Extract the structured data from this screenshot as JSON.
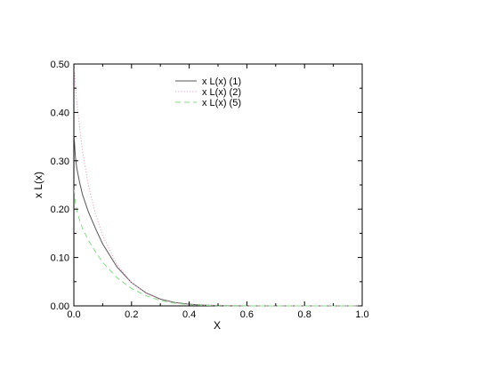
{
  "chart_data": {
    "type": "line",
    "xlabel": "X",
    "ylabel": "x L(x)",
    "xlim": [
      0.0,
      1.0
    ],
    "ylim": [
      0.0,
      0.5
    ],
    "xticks": [
      "0.0",
      "0.2",
      "0.4",
      "0.6",
      "0.8",
      "1.0"
    ],
    "yticks": [
      "0.00",
      "0.10",
      "0.20",
      "0.30",
      "0.40",
      "0.50"
    ],
    "grid": false,
    "legend_position": "top-center",
    "x": [
      0.001,
      0.005,
      0.01,
      0.02,
      0.03,
      0.05,
      0.075,
      0.1,
      0.15,
      0.2,
      0.25,
      0.3,
      0.35,
      0.4,
      0.45,
      0.5,
      0.6,
      0.7,
      0.8,
      0.9,
      1.0
    ],
    "series": [
      {
        "name": "x L(x)  (1)",
        "color": "#555555",
        "dash": "solid",
        "values": [
          0.35,
          0.31,
          0.285,
          0.255,
          0.23,
          0.195,
          0.16,
          0.128,
          0.08,
          0.048,
          0.027,
          0.014,
          0.007,
          0.0035,
          0.0015,
          0.0006,
          0.0001,
          0.0,
          0.0,
          0.0,
          0.0
        ]
      },
      {
        "name": "x L(x)  (2)",
        "color": "#e0a0c0",
        "dash": "dotted",
        "values": [
          0.5,
          0.46,
          0.42,
          0.37,
          0.32,
          0.25,
          0.19,
          0.145,
          0.085,
          0.048,
          0.026,
          0.013,
          0.006,
          0.0028,
          0.0012,
          0.0005,
          0.0001,
          0.0,
          0.0,
          0.0,
          0.0
        ]
      },
      {
        "name": "x L(x)  (5)",
        "color": "#88d888",
        "dash": "dashed",
        "values": [
          0.24,
          0.215,
          0.198,
          0.177,
          0.16,
          0.136,
          0.112,
          0.09,
          0.058,
          0.036,
          0.021,
          0.011,
          0.0055,
          0.0026,
          0.0011,
          0.0004,
          0.0001,
          0.0,
          0.0,
          0.0,
          0.0
        ]
      }
    ]
  }
}
